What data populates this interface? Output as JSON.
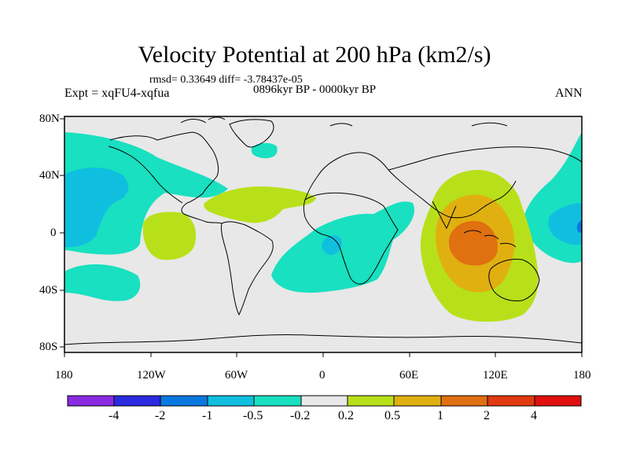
{
  "title": "Velocity Potential at 200 hPa (km2/s)",
  "stats_line": "rmsd= 0.33649 diff= -3.78437e-05",
  "experiment": "Expt = xqFU4-xqfua",
  "period": "0896kyr BP - 0000kyr BP",
  "season": "ANN",
  "lat_labels": [
    "80N",
    "40N",
    "0",
    "40S",
    "80S"
  ],
  "lon_labels": [
    "180",
    "120W",
    "60W",
    "0",
    "60E",
    "120E",
    "180"
  ],
  "colorbar": {
    "colors": [
      "#8a2be2",
      "#2a2ae0",
      "#0a78e0",
      "#10bfe0",
      "#18e0c0",
      "#e8e8e8",
      "#b8e01a",
      "#e0b010",
      "#e07010",
      "#e03a10",
      "#e01010"
    ],
    "labels": [
      "-4",
      "-2",
      "-1",
      "-0.5",
      "-0.2",
      "0.2",
      "0.5",
      "1",
      "2",
      "4"
    ]
  },
  "colors": {
    "background": "#e8e8e8",
    "teal": "#18e0c0",
    "cyan": "#10bfe0",
    "lime": "#b8e01a",
    "orange": "#e0b010",
    "darkorange": "#e07010"
  }
}
